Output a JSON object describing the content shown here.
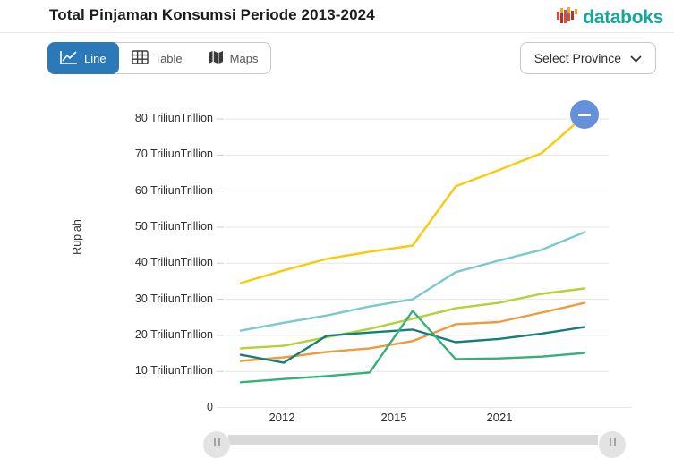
{
  "header": {
    "title": "Total Pinjaman Konsumsi Periode 2013-2024",
    "logo_text": "databoks",
    "logo_colors": {
      "teal": "#16A79C",
      "red": "#DD4A3C",
      "dark_red": "#B23327",
      "orange": "#F4A52E"
    }
  },
  "toolbar": {
    "tabs": [
      {
        "label": "Line",
        "active": true,
        "icon": "line-chart-icon"
      },
      {
        "label": "Table",
        "active": false,
        "icon": "table-grid-icon"
      },
      {
        "label": "Maps",
        "active": false,
        "icon": "folded-map-icon"
      }
    ],
    "active_tab_color": "#2B79B9",
    "province_selector": {
      "label": "Select Province",
      "icon": "chevron-down-icon"
    }
  },
  "chart_data": {
    "type": "line",
    "title": "Total Pinjaman Konsumsi Periode 2013-2024",
    "ylabel": "Rupiah",
    "ylim": [
      0,
      85
    ],
    "grid": true,
    "legend": "none",
    "y_ticks": [
      {
        "value": 0,
        "label": "0"
      },
      {
        "value": 10,
        "label": "10 TriliunTrillion"
      },
      {
        "value": 20,
        "label": "20 TriliunTrillion"
      },
      {
        "value": 30,
        "label": "30 TriliunTrillion"
      },
      {
        "value": 40,
        "label": "40 TriliunTrillion"
      },
      {
        "value": 50,
        "label": "50 TriliunTrillion"
      },
      {
        "value": 60,
        "label": "60 TriliunTrillion"
      },
      {
        "value": 70,
        "label": "70 TriliunTrillion"
      },
      {
        "value": 80,
        "label": "80 TriliunTrillion"
      }
    ],
    "x_tick_labels": [
      "2012",
      "2015",
      "2021"
    ],
    "units": "Trillion Rupiah",
    "series": [
      {
        "name": "series-yellow",
        "color": "#FACA08",
        "values": [
          34.5,
          38.0,
          41.2,
          43.2,
          44.9,
          61.3,
          65.8,
          70.5,
          80.9
        ]
      },
      {
        "name": "series-cyan",
        "color": "#79C9CE",
        "values": [
          21.3,
          23.5,
          25.5,
          28.0,
          30.0,
          37.5,
          40.7,
          43.7,
          48.6
        ]
      },
      {
        "name": "series-lime",
        "color": "#B2D235",
        "values": [
          16.4,
          17.1,
          19.5,
          21.8,
          24.6,
          27.5,
          29.0,
          31.5,
          33.0
        ]
      },
      {
        "name": "series-orange",
        "color": "#EF9B3D",
        "values": [
          12.9,
          13.9,
          15.4,
          16.4,
          18.4,
          23.1,
          23.7,
          26.3,
          29.0
        ]
      },
      {
        "name": "series-teal",
        "color": "#157E7B",
        "values": [
          14.6,
          12.4,
          19.9,
          20.8,
          21.6,
          18.1,
          19.0,
          20.5,
          22.3
        ]
      },
      {
        "name": "series-green",
        "color": "#34B177",
        "values": [
          7.0,
          7.9,
          8.7,
          9.7,
          26.8,
          13.4,
          13.6,
          14.1,
          15.1
        ]
      }
    ],
    "annotation": {
      "shape": "circle",
      "glyph": "minus",
      "color": "#6590DB"
    }
  },
  "navigator": {
    "handles": 2,
    "track_color": "#d9d9d9"
  }
}
